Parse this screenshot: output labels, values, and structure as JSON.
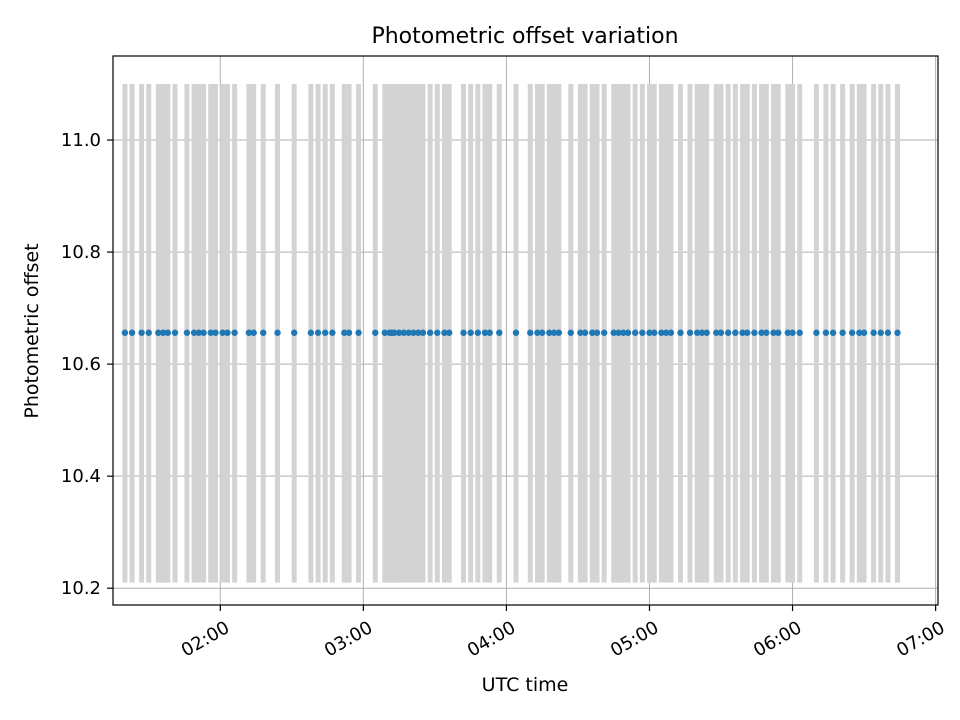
{
  "chart_data": {
    "type": "scatter",
    "title": "Photometric offset variation",
    "xlabel": "UTC time",
    "ylabel": "Photometric offset",
    "x_type": "time",
    "xlim": [
      "01:15",
      "07:01"
    ],
    "ylim": [
      10.17,
      11.15
    ],
    "x_ticks": [
      "02:00",
      "03:00",
      "04:00",
      "05:00",
      "06:00",
      "07:00"
    ],
    "y_ticks": [
      10.2,
      10.4,
      10.6,
      10.8,
      11.0
    ],
    "y_tick_labels": [
      "10.2",
      "10.4",
      "10.6",
      "10.8",
      "11.0"
    ],
    "grid": true,
    "legend": "none",
    "series": [
      {
        "marker_color": "#1f77b4",
        "errorbar_color": "#d3d3d3",
        "errorbar_low": 10.21,
        "errorbar_high": 11.1,
        "y_value": 10.656,
        "x": [
          "01:20",
          "01:23",
          "01:27",
          "01:30",
          "01:34",
          "01:36",
          "01:38",
          "01:41",
          "01:46",
          "01:49",
          "01:51",
          "01:53",
          "01:56",
          "01:58",
          "02:01",
          "02:03",
          "02:06",
          "02:12",
          "02:14",
          "02:18",
          "02:24",
          "02:31",
          "02:38",
          "02:41",
          "02:44",
          "02:47",
          "02:52",
          "02:54",
          "02:58",
          "03:05",
          "03:09",
          "03:11",
          "03:12",
          "03:13",
          "03:15",
          "03:17",
          "03:19",
          "03:21",
          "03:23",
          "03:25",
          "03:28",
          "03:31",
          "03:34",
          "03:36",
          "03:42",
          "03:45",
          "03:48",
          "03:51",
          "03:53",
          "03:57",
          "04:04",
          "04:10",
          "04:13",
          "04:15",
          "04:18",
          "04:20",
          "04:22",
          "04:27",
          "04:31",
          "04:33",
          "04:36",
          "04:38",
          "04:41",
          "04:45",
          "04:47",
          "04:49",
          "04:51",
          "04:54",
          "04:57",
          "05:00",
          "05:02",
          "05:05",
          "05:07",
          "05:09",
          "05:13",
          "05:17",
          "05:20",
          "05:22",
          "05:24",
          "05:28",
          "05:30",
          "05:33",
          "05:36",
          "05:39",
          "05:41",
          "05:44",
          "05:47",
          "05:49",
          "05:52",
          "05:54",
          "05:58",
          "06:00",
          "06:03",
          "06:10",
          "06:14",
          "06:17",
          "06:21",
          "06:25",
          "06:28",
          "06:30",
          "06:34",
          "06:37",
          "06:40",
          "06:44"
        ]
      }
    ]
  }
}
